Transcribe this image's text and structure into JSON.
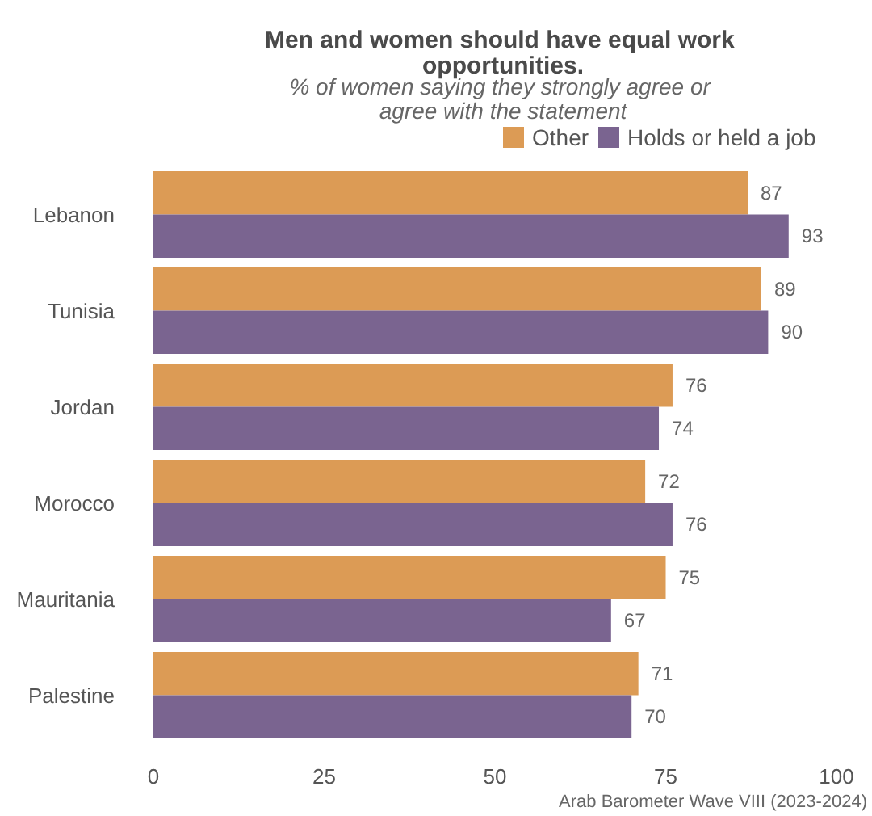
{
  "chart_data": {
    "type": "bar",
    "orientation": "horizontal",
    "title": "Men and women should have equal work opportunities.",
    "subtitle": "% of women saying they strongly agree or agree with the statement",
    "categories": [
      "Lebanon",
      "Tunisia",
      "Jordan",
      "Morocco",
      "Mauritania",
      "Palestine"
    ],
    "series": [
      {
        "name": "Other",
        "color": "#dc9b55",
        "values": [
          87,
          89,
          76,
          72,
          75,
          71
        ]
      },
      {
        "name": "Holds or held a job",
        "color": "#7a6490",
        "values": [
          93,
          90,
          74,
          76,
          67,
          70
        ]
      }
    ],
    "xlim": [
      0,
      100
    ],
    "xticks": [
      0,
      25,
      50,
      75,
      100
    ],
    "data_labels": true,
    "legend": "top",
    "grid": false,
    "annotations": [
      "Arab Barometer Wave VIII (2023-2024)"
    ]
  }
}
